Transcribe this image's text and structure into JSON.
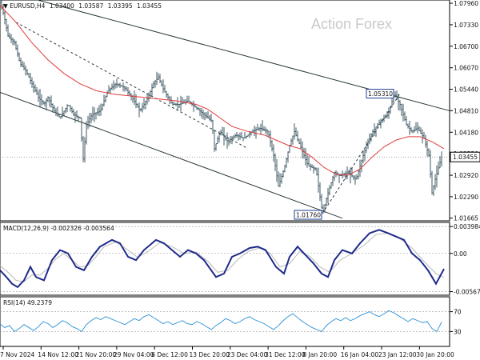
{
  "chart_data": {
    "type": "candlestick",
    "symbol_header": "EURUSD,H4",
    "ohlc_readout": [
      "1.03400",
      "1.03587",
      "1.03395",
      "1.03455"
    ],
    "watermark": "Action Forex",
    "price_axis": {
      "ticks": [
        "1.07960",
        "1.07330",
        "1.06700",
        "1.06070",
        "1.05440",
        "1.04810",
        "1.04180",
        "1.03550",
        "1.02920",
        "1.02290",
        "1.01665"
      ],
      "tick_values": [
        1.0796,
        1.0733,
        1.067,
        1.0607,
        1.0544,
        1.0481,
        1.0418,
        1.0355,
        1.0292,
        1.0229,
        1.01665
      ],
      "ylim": [
        1.01585,
        1.08055
      ],
      "current_price": "1.03455",
      "current_value": 1.03455
    },
    "x_axis_labels": [
      "7 Nov 2024",
      "14 Nov 12:00",
      "21 Nov 20:00",
      "29 Nov 04:00",
      "6 Dec 12:00",
      "13 Dec 20:00",
      "23 Dec 04:00",
      "31 Dec 12:00",
      "8 Jan 20:00",
      "16 Jan 04:00",
      "23 Jan 12:00",
      "30 Jan 20:00"
    ],
    "price_series": [
      [
        0,
        1.08
      ],
      [
        5,
        1.076
      ],
      [
        10,
        1.07
      ],
      [
        18,
        1.068
      ],
      [
        25,
        1.062
      ],
      [
        32,
        1.06
      ],
      [
        40,
        1.056
      ],
      [
        48,
        1.052
      ],
      [
        55,
        1.05
      ],
      [
        60,
        1.052
      ],
      [
        68,
        1.048
      ],
      [
        75,
        1.046
      ],
      [
        85,
        1.05
      ],
      [
        92,
        1.047
      ],
      [
        100,
        1.046
      ],
      [
        104,
        1.034
      ],
      [
        108,
        1.044
      ],
      [
        115,
        1.047
      ],
      [
        125,
        1.048
      ],
      [
        135,
        1.054
      ],
      [
        145,
        1.056
      ],
      [
        155,
        1.055
      ],
      [
        165,
        1.052
      ],
      [
        175,
        1.048
      ],
      [
        185,
        1.052
      ],
      [
        192,
        1.056
      ],
      [
        198,
        1.058
      ],
      [
        205,
        1.054
      ],
      [
        215,
        1.05
      ],
      [
        225,
        1.05
      ],
      [
        235,
        1.051
      ],
      [
        245,
        1.049
      ],
      [
        255,
        1.047
      ],
      [
        265,
        1.045
      ],
      [
        268,
        1.037
      ],
      [
        275,
        1.042
      ],
      [
        285,
        1.039
      ],
      [
        295,
        1.041
      ],
      [
        305,
        1.04
      ],
      [
        315,
        1.042
      ],
      [
        325,
        1.043
      ],
      [
        335,
        1.042
      ],
      [
        342,
        1.035
      ],
      [
        348,
        1.026
      ],
      [
        355,
        1.031
      ],
      [
        362,
        1.038
      ],
      [
        368,
        1.042
      ],
      [
        375,
        1.038
      ],
      [
        385,
        1.032
      ],
      [
        395,
        1.031
      ],
      [
        403,
        1.018
      ],
      [
        410,
        1.024
      ],
      [
        418,
        1.03
      ],
      [
        425,
        1.029
      ],
      [
        435,
        1.03
      ],
      [
        445,
        1.028
      ],
      [
        450,
        1.032
      ],
      [
        458,
        1.038
      ],
      [
        466,
        1.042
      ],
      [
        475,
        1.045
      ],
      [
        485,
        1.047
      ],
      [
        493,
        1.0531
      ],
      [
        500,
        1.05
      ],
      [
        508,
        1.044
      ],
      [
        515,
        1.042
      ],
      [
        522,
        1.043
      ],
      [
        530,
        1.04
      ],
      [
        536,
        1.035
      ],
      [
        540,
        1.024
      ],
      [
        545,
        1.029
      ],
      [
        552,
        1.0345
      ]
    ],
    "ma_series": [
      [
        0,
        1.079
      ],
      [
        20,
        1.074
      ],
      [
        40,
        1.068
      ],
      [
        60,
        1.063
      ],
      [
        80,
        1.059
      ],
      [
        100,
        1.056
      ],
      [
        120,
        1.054
      ],
      [
        140,
        1.053
      ],
      [
        160,
        1.0525
      ],
      [
        180,
        1.052
      ],
      [
        200,
        1.0515
      ],
      [
        220,
        1.051
      ],
      [
        245,
        1.05
      ],
      [
        260,
        1.0485
      ],
      [
        275,
        1.046
      ],
      [
        290,
        1.0435
      ],
      [
        310,
        1.042
      ],
      [
        330,
        1.041
      ],
      [
        345,
        1.0395
      ],
      [
        360,
        1.038
      ],
      [
        375,
        1.037
      ],
      [
        390,
        1.0345
      ],
      [
        405,
        1.0315
      ],
      [
        420,
        1.0295
      ],
      [
        435,
        1.0292
      ],
      [
        450,
        1.031
      ],
      [
        465,
        1.0345
      ],
      [
        480,
        1.0375
      ],
      [
        495,
        1.0395
      ],
      [
        510,
        1.0405
      ],
      [
        525,
        1.0405
      ],
      [
        540,
        1.039
      ],
      [
        555,
        1.037
      ]
    ],
    "annotations": [
      {
        "label": "1.05310",
        "x": 493,
        "value": 1.0531,
        "side": "left"
      },
      {
        "label": "1.01760",
        "x": 403,
        "value": 1.0176,
        "side": "left"
      }
    ],
    "channel_lines": [
      {
        "style": "solid",
        "points": [
          [
            0,
            1.0835
          ],
          [
            562,
            1.0481
          ]
        ]
      },
      {
        "style": "solid",
        "points": [
          [
            0,
            1.0535
          ],
          [
            428,
            1.0166
          ]
        ]
      },
      {
        "style": "dashed",
        "points": [
          [
            20,
            1.074
          ],
          [
            310,
            1.037
          ]
        ]
      },
      {
        "style": "dashed",
        "points": [
          [
            403,
            1.018
          ],
          [
            500,
            1.0531
          ]
        ]
      }
    ],
    "macd": {
      "label": "MACD(12,26,9) -0.002326 -0.003564",
      "ticks": [
        "0.003984",
        "0.00",
        "-0.00567"
      ],
      "tick_values": [
        0.003984,
        0.0,
        -0.00567
      ],
      "ylim": [
        -0.0062,
        0.0046
      ],
      "main": [
        [
          0,
          -0.0025
        ],
        [
          8,
          -0.0035
        ],
        [
          15,
          -0.0045
        ],
        [
          22,
          -0.005
        ],
        [
          30,
          -0.004
        ],
        [
          38,
          -0.002
        ],
        [
          45,
          -0.0035
        ],
        [
          55,
          -0.004
        ],
        [
          65,
          -0.001
        ],
        [
          75,
          0.0005
        ],
        [
          85,
          0.0
        ],
        [
          95,
          -0.002
        ],
        [
          105,
          -0.0025
        ],
        [
          115,
          -0.0005
        ],
        [
          125,
          0.001
        ],
        [
          140,
          0.002
        ],
        [
          150,
          0.0015
        ],
        [
          160,
          -0.0005
        ],
        [
          170,
          -0.001
        ],
        [
          180,
          0.0005
        ],
        [
          195,
          0.002
        ],
        [
          205,
          0.0015
        ],
        [
          215,
          0.0005
        ],
        [
          225,
          -0.0005
        ],
        [
          235,
          0.0005
        ],
        [
          245,
          0.0
        ],
        [
          255,
          -0.001
        ],
        [
          270,
          -0.0035
        ],
        [
          280,
          -0.003
        ],
        [
          290,
          -0.0005
        ],
        [
          300,
          0.0
        ],
        [
          312,
          0.0008
        ],
        [
          322,
          0.001
        ],
        [
          332,
          0.0005
        ],
        [
          345,
          -0.002
        ],
        [
          355,
          -0.003
        ],
        [
          362,
          -0.0005
        ],
        [
          372,
          0.001
        ],
        [
          380,
          0.0
        ],
        [
          392,
          -0.0015
        ],
        [
          402,
          -0.003
        ],
        [
          410,
          -0.0035
        ],
        [
          418,
          -0.001
        ],
        [
          428,
          0.0005
        ],
        [
          440,
          0.0
        ],
        [
          450,
          0.0015
        ],
        [
          462,
          0.003
        ],
        [
          474,
          0.0035
        ],
        [
          485,
          0.003
        ],
        [
          495,
          0.0025
        ],
        [
          505,
          0.002
        ],
        [
          515,
          0.0
        ],
        [
          525,
          -0.001
        ],
        [
          535,
          -0.0025
        ],
        [
          545,
          -0.0045
        ],
        [
          555,
          -0.0023
        ]
      ],
      "signal": [
        [
          0,
          -0.0018
        ],
        [
          10,
          -0.0028
        ],
        [
          20,
          -0.004
        ],
        [
          30,
          -0.0042
        ],
        [
          40,
          -0.0032
        ],
        [
          50,
          -0.0032
        ],
        [
          60,
          -0.0022
        ],
        [
          70,
          -0.0008
        ],
        [
          80,
          0.0
        ],
        [
          90,
          -0.001
        ],
        [
          100,
          -0.002
        ],
        [
          110,
          -0.0018
        ],
        [
          120,
          -0.0005
        ],
        [
          130,
          0.001
        ],
        [
          145,
          0.0017
        ],
        [
          160,
          0.0005
        ],
        [
          172,
          -0.0006
        ],
        [
          185,
          0.0003
        ],
        [
          200,
          0.0016
        ],
        [
          215,
          0.001
        ],
        [
          230,
          0.0
        ],
        [
          245,
          0.0002
        ],
        [
          260,
          -0.0012
        ],
        [
          272,
          -0.0028
        ],
        [
          285,
          -0.0025
        ],
        [
          298,
          -0.0008
        ],
        [
          312,
          0.0004
        ],
        [
          325,
          0.0008
        ],
        [
          338,
          0.0
        ],
        [
          350,
          -0.002
        ],
        [
          362,
          -0.0015
        ],
        [
          375,
          0.0003
        ],
        [
          388,
          -0.0005
        ],
        [
          400,
          -0.002
        ],
        [
          412,
          -0.0028
        ],
        [
          425,
          -0.001
        ],
        [
          440,
          0.0
        ],
        [
          455,
          0.0012
        ],
        [
          470,
          0.0028
        ],
        [
          485,
          0.003
        ],
        [
          500,
          0.0022
        ],
        [
          515,
          0.0008
        ],
        [
          530,
          -0.0012
        ],
        [
          545,
          -0.003
        ],
        [
          555,
          -0.0036
        ]
      ]
    },
    "rsi": {
      "label": "RSI(14) 49.2379",
      "ticks": [
        "70",
        "30"
      ],
      "tick_values": [
        70,
        30
      ],
      "ylim": [
        0,
        100
      ],
      "values": [
        [
          0,
          45
        ],
        [
          6,
          38
        ],
        [
          12,
          42
        ],
        [
          18,
          30
        ],
        [
          24,
          36
        ],
        [
          30,
          44
        ],
        [
          36,
          38
        ],
        [
          42,
          32
        ],
        [
          48,
          40
        ],
        [
          54,
          50
        ],
        [
          60,
          46
        ],
        [
          66,
          38
        ],
        [
          72,
          44
        ],
        [
          78,
          52
        ],
        [
          84,
          48
        ],
        [
          90,
          40
        ],
        [
          96,
          36
        ],
        [
          102,
          30
        ],
        [
          108,
          44
        ],
        [
          114,
          52
        ],
        [
          120,
          58
        ],
        [
          126,
          54
        ],
        [
          132,
          60
        ],
        [
          138,
          56
        ],
        [
          144,
          52
        ],
        [
          150,
          48
        ],
        [
          156,
          44
        ],
        [
          162,
          50
        ],
        [
          168,
          56
        ],
        [
          174,
          52
        ],
        [
          180,
          60
        ],
        [
          186,
          64
        ],
        [
          192,
          58
        ],
        [
          198,
          52
        ],
        [
          204,
          46
        ],
        [
          210,
          50
        ],
        [
          216,
          44
        ],
        [
          222,
          48
        ],
        [
          228,
          52
        ],
        [
          234,
          46
        ],
        [
          240,
          44
        ],
        [
          246,
          50
        ],
        [
          252,
          46
        ],
        [
          258,
          40
        ],
        [
          264,
          34
        ],
        [
          270,
          42
        ],
        [
          276,
          48
        ],
        [
          282,
          56
        ],
        [
          288,
          52
        ],
        [
          294,
          46
        ],
        [
          300,
          50
        ],
        [
          306,
          56
        ],
        [
          312,
          60
        ],
        [
          318,
          54
        ],
        [
          324,
          50
        ],
        [
          330,
          46
        ],
        [
          336,
          40
        ],
        [
          342,
          34
        ],
        [
          348,
          42
        ],
        [
          354,
          52
        ],
        [
          360,
          60
        ],
        [
          366,
          66
        ],
        [
          372,
          58
        ],
        [
          378,
          50
        ],
        [
          384,
          44
        ],
        [
          390,
          38
        ],
        [
          396,
          34
        ],
        [
          402,
          30
        ],
        [
          408,
          42
        ],
        [
          414,
          50
        ],
        [
          420,
          56
        ],
        [
          426,
          52
        ],
        [
          432,
          58
        ],
        [
          438,
          52
        ],
        [
          444,
          56
        ],
        [
          450,
          62
        ],
        [
          456,
          66
        ],
        [
          462,
          70
        ],
        [
          468,
          64
        ],
        [
          474,
          60
        ],
        [
          480,
          66
        ],
        [
          486,
          72
        ],
        [
          492,
          68
        ],
        [
          498,
          62
        ],
        [
          504,
          56
        ],
        [
          510,
          50
        ],
        [
          516,
          56
        ],
        [
          522,
          52
        ],
        [
          528,
          48
        ],
        [
          534,
          50
        ],
        [
          540,
          36
        ],
        [
          546,
          30
        ],
        [
          552,
          49
        ]
      ]
    }
  }
}
